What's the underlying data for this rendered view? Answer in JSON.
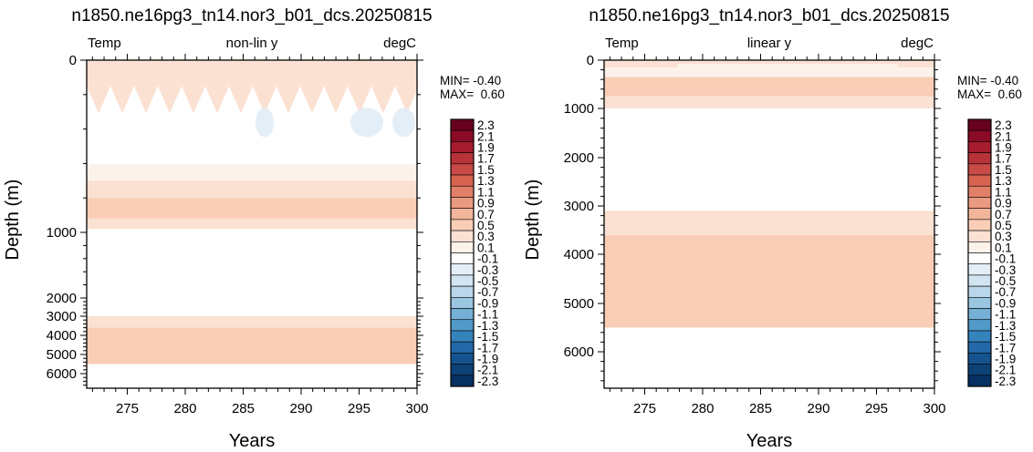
{
  "chart_data": [
    {
      "type": "heatmap",
      "title": "n1850.ne16pg3_tn14.nor3_b01_dcs.20250815",
      "left_label": "Temp",
      "center_label": "non-lin y",
      "right_label": "degC",
      "xlabel": "Years",
      "ylabel": "Depth (m)",
      "xlim": [
        271.5,
        300
      ],
      "x_ticks": [
        275,
        280,
        285,
        290,
        295,
        300
      ],
      "y_scale": "non-linear",
      "y_ticks": [
        0,
        1000,
        2000,
        3000,
        4000,
        5000,
        6000
      ],
      "min_label": "MIN= -0.40",
      "max_label": "MAX=  0.60",
      "layers": [
        {
          "top": 0,
          "bottom": 150,
          "value": 0.3
        },
        {
          "top": 150,
          "bottom": 700,
          "value": 0.0
        },
        {
          "top": 700,
          "bottom": 800,
          "value": 0.3
        },
        {
          "top": 800,
          "bottom": 920,
          "value": 0.5
        },
        {
          "top": 920,
          "bottom": 980,
          "value": 0.3
        },
        {
          "top": 980,
          "bottom": 1250,
          "value": 0.0
        },
        {
          "top": 1250,
          "bottom": 2600,
          "value": -0.1
        },
        {
          "top": 2600,
          "bottom": 3000,
          "value": 0.0
        },
        {
          "top": 3000,
          "bottom": 3600,
          "value": 0.3
        },
        {
          "top": 3600,
          "bottom": 5500,
          "value": 0.5
        },
        {
          "top": 5500,
          "bottom": 6800,
          "value": 0.0
        }
      ]
    },
    {
      "type": "heatmap",
      "title": "n1850.ne16pg3_tn14.nor3_b01_dcs.20250815",
      "left_label": "Temp",
      "center_label": "linear y",
      "right_label": "degC",
      "xlabel": "Years",
      "ylabel": "Depth (m)",
      "xlim": [
        271.5,
        300
      ],
      "x_ticks": [
        275,
        280,
        285,
        290,
        295,
        300
      ],
      "y_scale": "linear",
      "y_ticks": [
        0,
        1000,
        2000,
        3000,
        4000,
        5000,
        6000
      ],
      "min_label": "MIN= -0.40",
      "max_label": "MAX=  0.60",
      "layers": [
        {
          "top": 0,
          "bottom": 150,
          "value": 0.3
        },
        {
          "top": 150,
          "bottom": 350,
          "value": 0.1
        },
        {
          "top": 350,
          "bottom": 750,
          "value": 0.5
        },
        {
          "top": 750,
          "bottom": 1000,
          "value": 0.3
        },
        {
          "top": 1000,
          "bottom": 2550,
          "value": -0.1
        },
        {
          "top": 2550,
          "bottom": 3100,
          "value": 0.0
        },
        {
          "top": 3100,
          "bottom": 3600,
          "value": 0.3
        },
        {
          "top": 3600,
          "bottom": 5500,
          "value": 0.5
        },
        {
          "top": 5500,
          "bottom": 6800,
          "value": 0.0
        }
      ]
    }
  ],
  "colorbar": {
    "labels": [
      "2.3",
      "2.1",
      "1.9",
      "1.7",
      "1.5",
      "1.3",
      "1.1",
      "0.9",
      "0.7",
      "0.5",
      "0.3",
      "0.1",
      "-0.1",
      "-0.3",
      "-0.5",
      "-0.7",
      "-0.9",
      "-1.1",
      "-1.3",
      "-1.5",
      "-1.7",
      "-1.9",
      "-2.1",
      "-2.3"
    ],
    "colors": [
      "#67001f",
      "#8b0a26",
      "#a51c2f",
      "#b8323a",
      "#c94a48",
      "#d6634f",
      "#e17f68",
      "#ea9a80",
      "#f2b59c",
      "#f9cdb6",
      "#fbe1d2",
      "#fdf2ea",
      "#ffffff",
      "#e4eef6",
      "#d1e4f0",
      "#b9d6ea",
      "#9ac6e1",
      "#75b0d6",
      "#519ac9",
      "#3583bc",
      "#2369a9",
      "#15538f",
      "#0c4176",
      "#053061"
    ]
  }
}
